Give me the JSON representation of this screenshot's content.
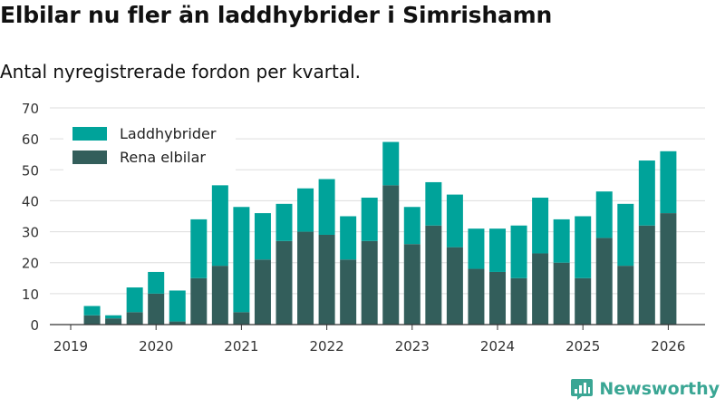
{
  "title": "Elbilar nu fler än laddhybrider i Simrishamn",
  "subtitle": "Antal nyregistrerade fordon per kvartal.",
  "brand": {
    "name": "Newsworthy",
    "icon": "newsworthy-logo-icon",
    "color": "#3aa694"
  },
  "colors": {
    "laddhybrider": "#00a39a",
    "elbilar": "#335e5b",
    "grid": "#dddddd",
    "axis": "#333333"
  },
  "chart_data": {
    "type": "bar",
    "stacked": true,
    "title": "Elbilar nu fler än laddhybrider i Simrishamn",
    "subtitle": "Antal nyregistrerade fordon per kvartal.",
    "xlabel": "",
    "ylabel": "",
    "ylim": [
      0,
      70
    ],
    "yticks": [
      0,
      10,
      20,
      30,
      40,
      50,
      60,
      70
    ],
    "x_tick_labels": [
      "2019",
      "2020",
      "2021",
      "2022",
      "2023",
      "2024",
      "2025",
      "2026"
    ],
    "x_tick_quarter_index": [
      0,
      4,
      8,
      12,
      16,
      20,
      24,
      28
    ],
    "categories": [
      "2019 Q1",
      "2019 Q2",
      "2019 Q3",
      "2019 Q4",
      "2020 Q1",
      "2020 Q2",
      "2020 Q3",
      "2020 Q4",
      "2021 Q1",
      "2021 Q2",
      "2021 Q3",
      "2021 Q4",
      "2022 Q1",
      "2022 Q2",
      "2022 Q3",
      "2022 Q4",
      "2023 Q1",
      "2023 Q2",
      "2023 Q3",
      "2023 Q4",
      "2024 Q1",
      "2024 Q2",
      "2024 Q3",
      "2024 Q4",
      "2025 Q1",
      "2025 Q2",
      "2025 Q3",
      "2025 Q4"
    ],
    "series": [
      {
        "name": "Rena elbilar",
        "values": [
          3,
          2,
          4,
          10,
          1,
          15,
          19,
          4,
          21,
          27,
          30,
          29,
          21,
          27,
          45,
          26,
          32,
          25,
          18,
          17,
          15,
          23,
          20,
          15,
          28,
          19,
          32,
          36
        ]
      },
      {
        "name": "Laddhybrider",
        "values": [
          3,
          1,
          8,
          7,
          10,
          19,
          26,
          34,
          15,
          12,
          14,
          18,
          14,
          14,
          14,
          12,
          14,
          17,
          13,
          14,
          17,
          18,
          14,
          20,
          15,
          20,
          21,
          20
        ]
      }
    ],
    "legend": {
      "position": "top-left",
      "entries": [
        "Laddhybrider",
        "Rena elbilar"
      ]
    },
    "grid": true
  }
}
